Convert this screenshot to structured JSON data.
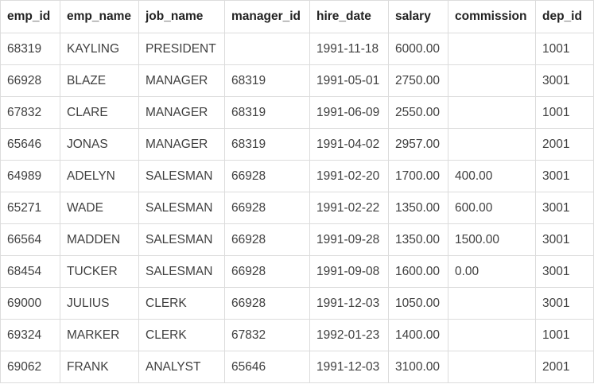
{
  "table": {
    "columns": [
      "emp_id",
      "emp_name",
      "job_name",
      "manager_id",
      "hire_date",
      "salary",
      "commission",
      "dep_id"
    ],
    "rows": [
      [
        "68319",
        "KAYLING",
        "PRESIDENT",
        "",
        "1991-11-18",
        "6000.00",
        "",
        "1001"
      ],
      [
        "66928",
        "BLAZE",
        "MANAGER",
        "68319",
        "1991-05-01",
        "2750.00",
        "",
        "3001"
      ],
      [
        "67832",
        "CLARE",
        "MANAGER",
        "68319",
        "1991-06-09",
        "2550.00",
        "",
        "1001"
      ],
      [
        "65646",
        "JONAS",
        "MANAGER",
        "68319",
        "1991-04-02",
        "2957.00",
        "",
        "2001"
      ],
      [
        "64989",
        "ADELYN",
        "SALESMAN",
        "66928",
        "1991-02-20",
        "1700.00",
        "400.00",
        "3001"
      ],
      [
        "65271",
        "WADE",
        "SALESMAN",
        "66928",
        "1991-02-22",
        "1350.00",
        "600.00",
        "3001"
      ],
      [
        "66564",
        "MADDEN",
        "SALESMAN",
        "66928",
        "1991-09-28",
        "1350.00",
        "1500.00",
        "3001"
      ],
      [
        "68454",
        "TUCKER",
        "SALESMAN",
        "66928",
        "1991-09-08",
        "1600.00",
        "0.00",
        "3001"
      ],
      [
        "69000",
        "JULIUS",
        "CLERK",
        "66928",
        "1991-12-03",
        "1050.00",
        "",
        "3001"
      ],
      [
        "69324",
        "MARKER",
        "CLERK",
        "67832",
        "1992-01-23",
        "1400.00",
        "",
        "1001"
      ],
      [
        "69062",
        "FRANK",
        "ANALYST",
        "65646",
        "1991-12-03",
        "3100.00",
        "",
        "2001"
      ]
    ]
  }
}
